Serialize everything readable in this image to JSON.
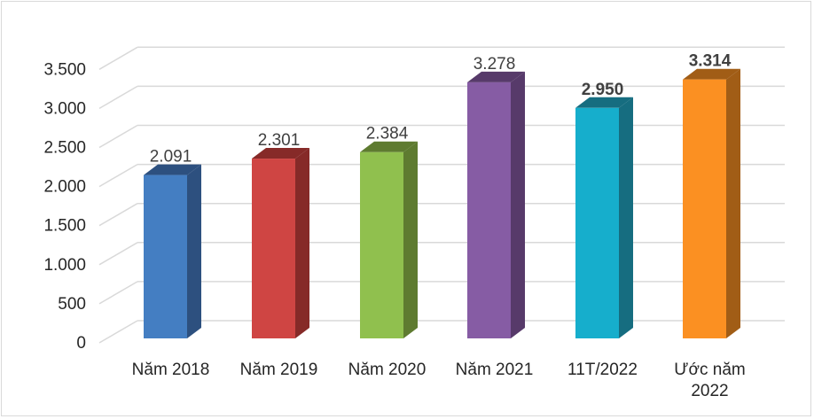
{
  "chart_data": {
    "type": "bar",
    "style": "3d-column",
    "categories": [
      "Năm 2018",
      "Năm 2019",
      "Năm 2020",
      "Năm 2021",
      "11T/2022",
      "Ước năm 2022"
    ],
    "category_lines": [
      [
        "Năm 2018"
      ],
      [
        "Năm 2019"
      ],
      [
        "Năm 2020"
      ],
      [
        "Năm 2021"
      ],
      [
        "11T/2022"
      ],
      [
        "Ước năm",
        "2022"
      ]
    ],
    "values": [
      2091,
      2301,
      2384,
      3278,
      2950,
      3314
    ],
    "value_labels": [
      "2.091",
      "2.301",
      "2.384",
      "3.278",
      "2.950",
      "3.314"
    ],
    "bold_labels": [
      false,
      false,
      false,
      false,
      true,
      true
    ],
    "colors": [
      "#447EC2",
      "#CF4543",
      "#90C04E",
      "#865CA4",
      "#16AECC",
      "#FB9022"
    ],
    "side_colors": [
      "#2D507F",
      "#862A28",
      "#5E7B30",
      "#573A6A",
      "#166D80",
      "#A15D16"
    ],
    "ylim": [
      0,
      3500
    ],
    "yticks": [
      0,
      500,
      1000,
      1500,
      2000,
      2500,
      3000,
      3500
    ],
    "ytick_labels": [
      "0",
      "500",
      "1.000",
      "1.500",
      "2.000",
      "2.500",
      "3.000",
      "3.500"
    ],
    "grid": true,
    "title": "",
    "xlabel": "",
    "ylabel": ""
  }
}
